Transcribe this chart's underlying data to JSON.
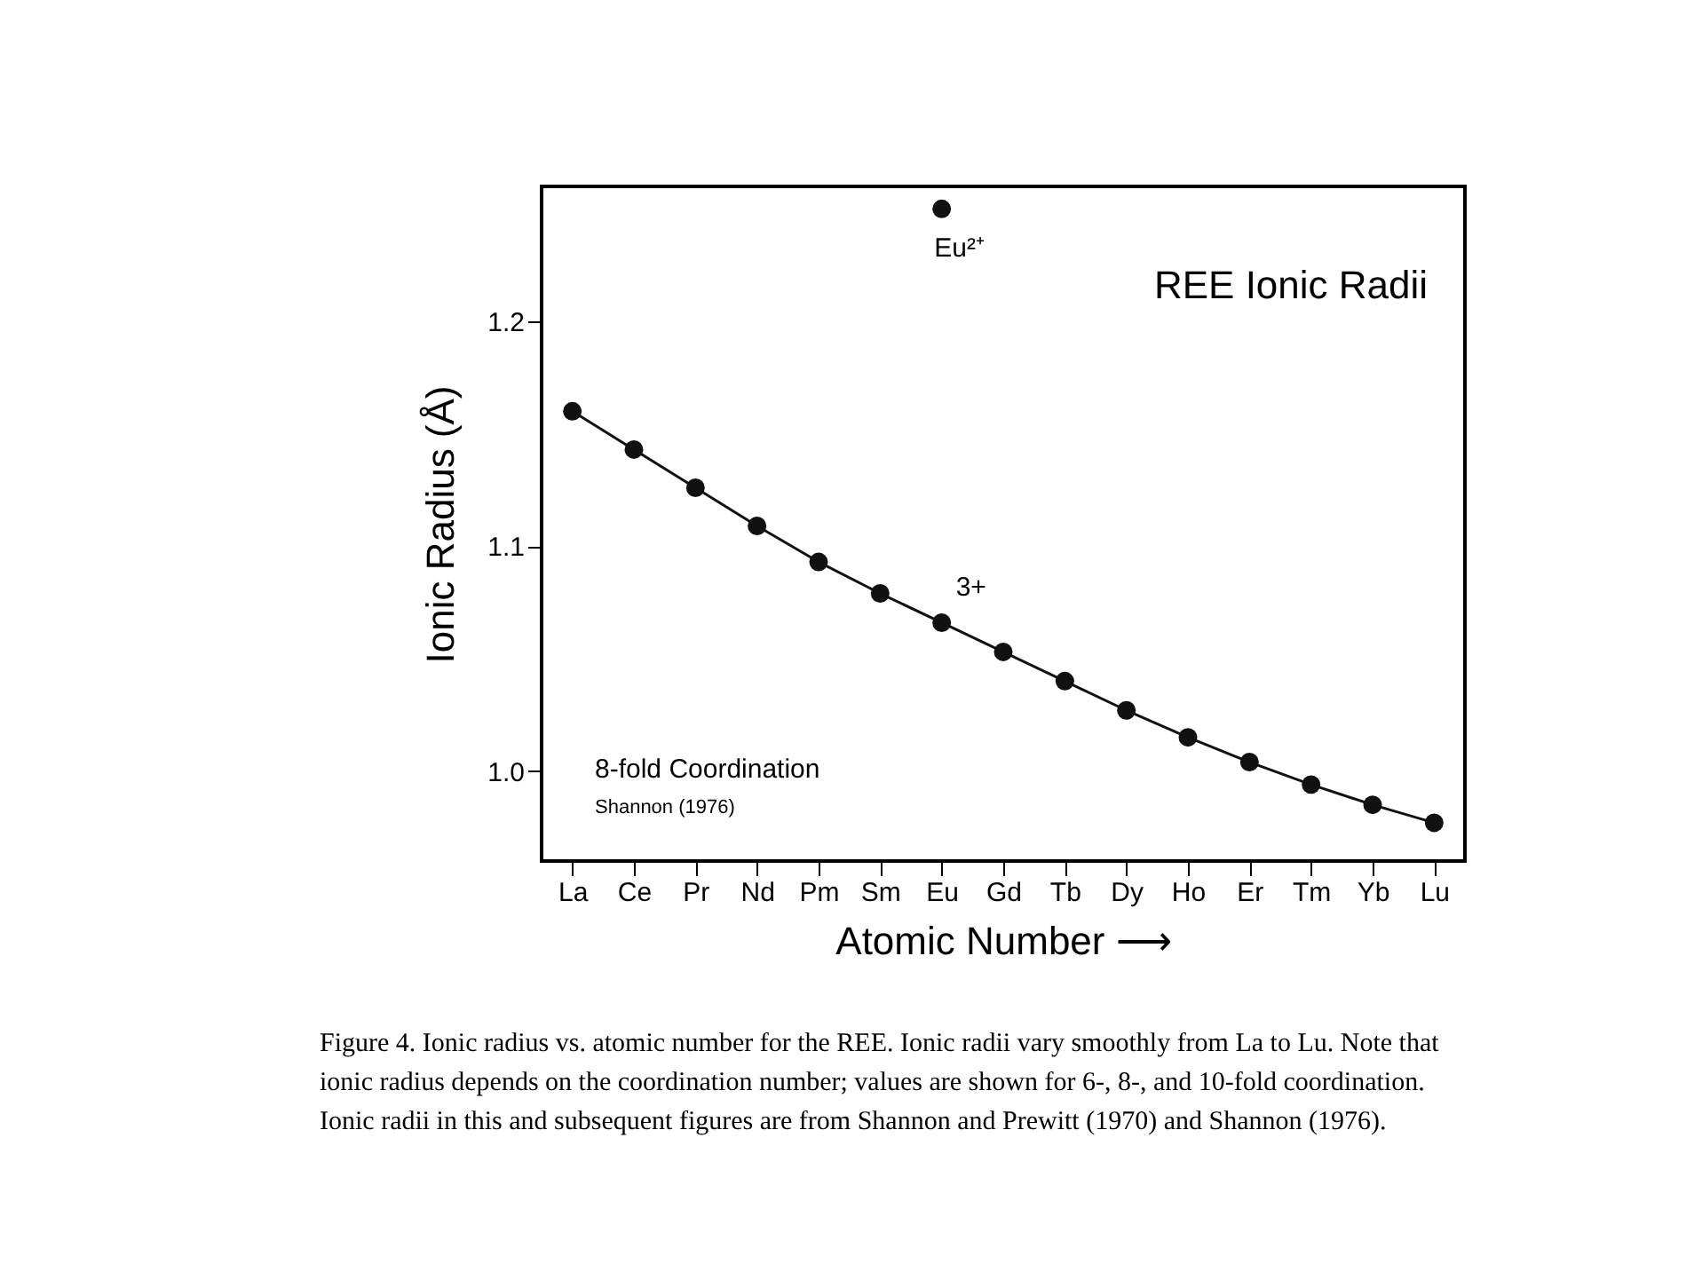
{
  "chart_data": {
    "type": "line",
    "title": "REE Ionic Radii",
    "xlabel": "Atomic Number ⟶",
    "ylabel": "Ionic Radius (Å)",
    "categories": [
      "La",
      "Ce",
      "Pr",
      "Nd",
      "Pm",
      "Sm",
      "Eu",
      "Gd",
      "Tb",
      "Dy",
      "Ho",
      "Er",
      "Tm",
      "Yb",
      "Lu"
    ],
    "series": [
      {
        "color": "#111111",
        "values": [
          1.16,
          1.143,
          1.126,
          1.109,
          1.093,
          1.079,
          1.066,
          1.053,
          1.04,
          1.027,
          1.015,
          1.004,
          0.994,
          0.985,
          0.977
        ]
      },
      {
        "type": "scatter",
        "color": "#111111",
        "x": [
          "Eu"
        ],
        "values": [
          1.25
        ]
      }
    ],
    "ylim": [
      0.96,
      1.26
    ],
    "yticks": [
      {
        "value": 1.0,
        "label": "1.0"
      },
      {
        "value": 1.1,
        "label": "1.1"
      },
      {
        "value": 1.2,
        "label": "1.2"
      }
    ],
    "marker": "circle",
    "line_style": "solid",
    "grid": false,
    "annotations": [
      {
        "text": "Eu²⁺",
        "x": "Eu",
        "y": 1.25
      },
      {
        "text": "3+",
        "x": "Eu",
        "y": 1.066
      },
      "8-fold Coordination",
      "Shannon (1976)",
      "Figure 4.  Ionic radius vs. atomic number for the REE. Ionic radii vary smoothly from La to Lu. Note that ionic radius depends on the coordination number; values are shown for 6-, 8-, and 10-fold coordination. Ionic radii in this and subsequent figures are from Shannon and Prewitt (1970) and Shannon (1976)."
    ]
  }
}
